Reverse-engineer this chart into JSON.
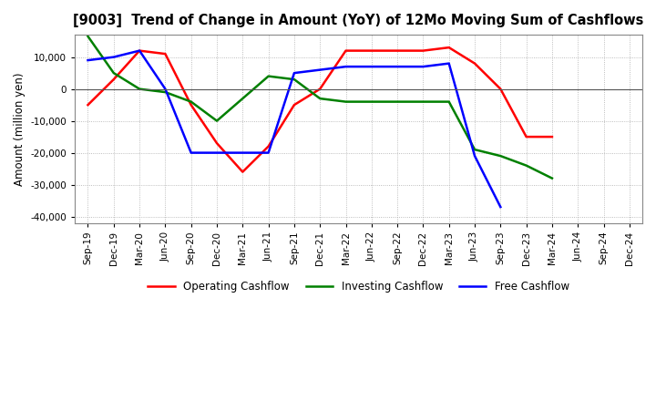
{
  "title": "[9003]  Trend of Change in Amount (YoY) of 12Mo Moving Sum of Cashflows",
  "ylabel": "Amount (million yen)",
  "ylim": [
    -42000,
    17000
  ],
  "yticks": [
    10000,
    0,
    -10000,
    -20000,
    -30000,
    -40000
  ],
  "background_color": "#ffffff",
  "grid_color": "#aaaaaa",
  "x_labels": [
    "Sep-19",
    "Dec-19",
    "Mar-20",
    "Jun-20",
    "Sep-20",
    "Dec-20",
    "Mar-21",
    "Jun-21",
    "Sep-21",
    "Dec-21",
    "Mar-22",
    "Jun-22",
    "Sep-22",
    "Dec-22",
    "Mar-23",
    "Jun-23",
    "Sep-23",
    "Dec-23",
    "Mar-24",
    "Jun-24",
    "Sep-24",
    "Dec-24"
  ],
  "operating": [
    -5000,
    3000,
    12000,
    11000,
    -5000,
    -17000,
    -26000,
    -18000,
    -5000,
    0,
    12000,
    12000,
    12000,
    12000,
    13000,
    8000,
    0,
    -15000,
    -15000,
    null,
    null,
    null
  ],
  "investing": [
    16500,
    5000,
    0,
    -1000,
    -4000,
    -10000,
    -3000,
    4000,
    3000,
    -3000,
    -4000,
    -4000,
    -4000,
    -4000,
    -4000,
    -19000,
    -21000,
    -24000,
    -28000,
    null,
    null,
    null
  ],
  "free": [
    9000,
    10000,
    12000,
    0,
    -20000,
    -20000,
    -20000,
    -20000,
    5000,
    6000,
    7000,
    7000,
    7000,
    7000,
    8000,
    -21000,
    -37000,
    null,
    null,
    null,
    null,
    null
  ],
  "op_color": "#ff0000",
  "inv_color": "#008000",
  "free_color": "#0000ff",
  "legend_labels": [
    "Operating Cashflow",
    "Investing Cashflow",
    "Free Cashflow"
  ]
}
